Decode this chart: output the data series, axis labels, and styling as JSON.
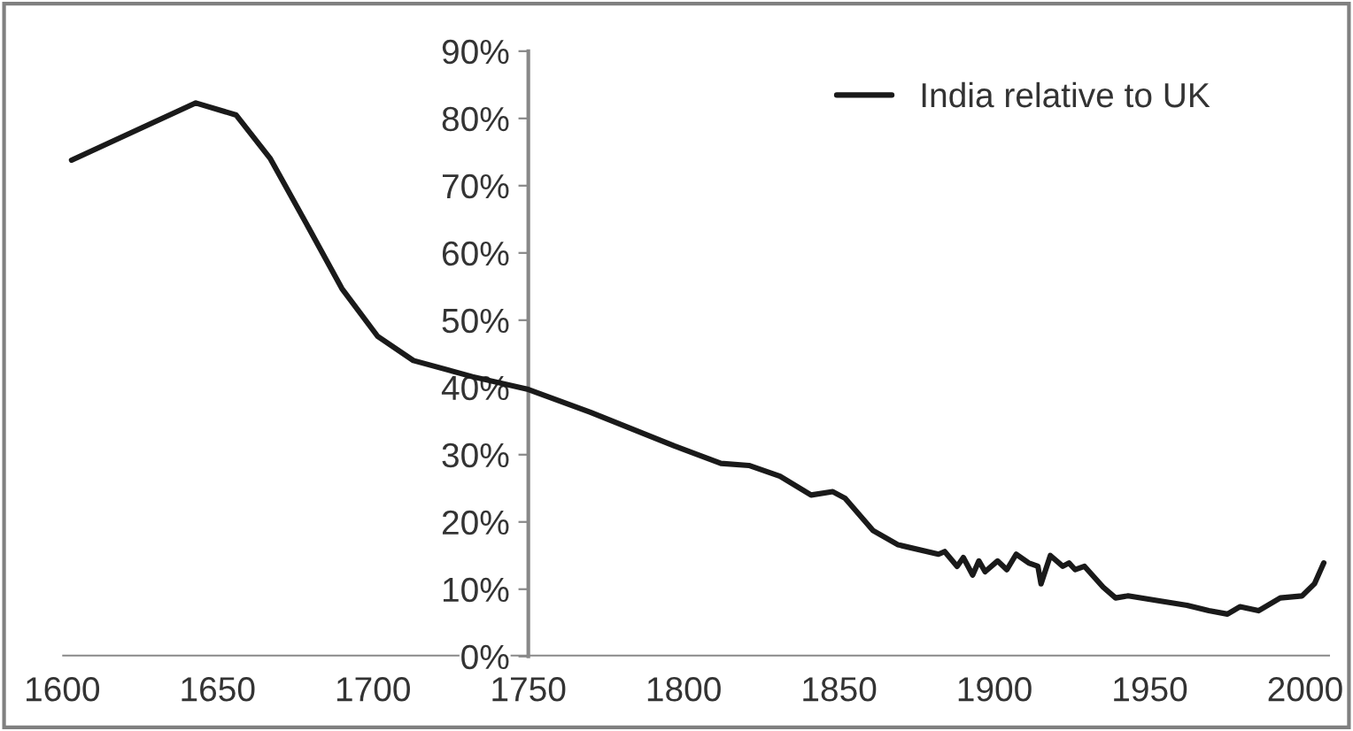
{
  "chart_data": {
    "type": "line",
    "xlim": [
      1600,
      2008
    ],
    "xticks": [
      1600,
      1650,
      1700,
      1750,
      1800,
      1850,
      1900,
      1950,
      2000
    ],
    "ylim": [
      0,
      90
    ],
    "yticks": [
      {
        "value": 0,
        "label": "0%"
      },
      {
        "value": 10,
        "label": "10%"
      },
      {
        "value": 20,
        "label": "20%"
      },
      {
        "value": 30,
        "label": "30%"
      },
      {
        "value": 40,
        "label": "40%"
      },
      {
        "value": 50,
        "label": "50%"
      },
      {
        "value": 60,
        "label": "60%"
      },
      {
        "value": 70,
        "label": "70%"
      },
      {
        "value": 80,
        "label": "80%"
      },
      {
        "value": 90,
        "label": "90%"
      }
    ],
    "grid": false,
    "legend": "top right",
    "marker": "none",
    "line_style": "solid",
    "series": [
      {
        "name": "India relative to UK",
        "color": "#1a1a1a",
        "x": [
          1603,
          1643,
          1656,
          1667,
          1679,
          1690,
          1701.5,
          1713,
          1732,
          1750,
          1770,
          1797,
          1812,
          1821,
          1831,
          1841,
          1848,
          1852,
          1861,
          1869,
          1882,
          1884,
          1888,
          1890,
          1893,
          1895,
          1897,
          1901,
          1904,
          1907,
          1911,
          1914,
          1915,
          1918,
          1922,
          1924,
          1926,
          1929,
          1935,
          1939,
          1943,
          1954,
          1962,
          1969,
          1975,
          1979,
          1985,
          1992,
          1999,
          2003,
          2006
        ],
        "values": [
          73.8,
          82.3,
          80.5,
          74,
          64,
          54.7,
          47.6,
          44,
          41.6,
          39.7,
          36.3,
          31.3,
          28.7,
          28.4,
          26.8,
          24,
          24.5,
          23.5,
          18.7,
          16.6,
          15.2,
          15.6,
          13.4,
          14.7,
          12.1,
          14.2,
          12.6,
          14.2,
          12.9,
          15.2,
          13.9,
          13.4,
          10.8,
          15,
          13.4,
          13.9,
          12.9,
          13.4,
          10.3,
          8.7,
          9,
          8.2,
          7.6,
          6.8,
          6.3,
          7.4,
          6.8,
          8.7,
          9,
          10.8,
          13.9
        ]
      }
    ]
  }
}
